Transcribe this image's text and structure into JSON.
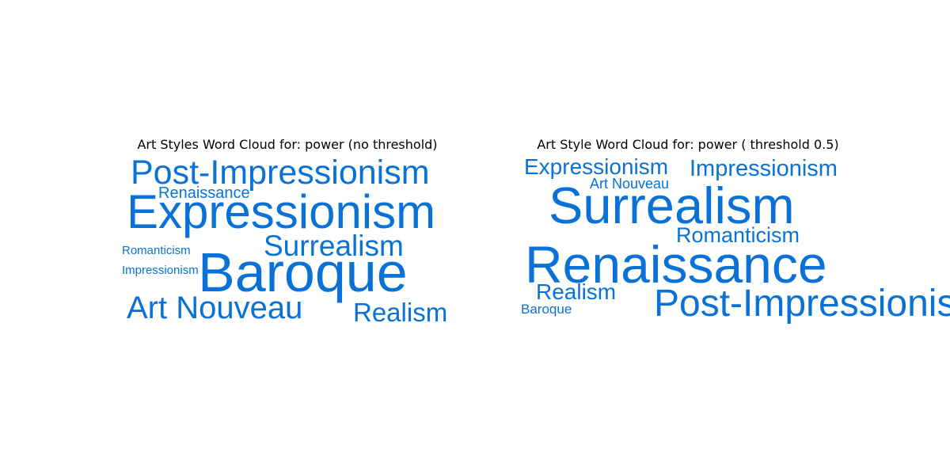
{
  "chart_data": [
    {
      "type": "wordcloud",
      "title": "Art Styles Word Cloud for: power (no threshold)",
      "color": "#0a72d6",
      "words": [
        "Post-Impressionism",
        "Renaissance",
        "Expressionism",
        "Surrealism",
        "Romanticism",
        "Impressionism",
        "Baroque",
        "Art Nouveau",
        "Realism"
      ]
    },
    {
      "type": "wordcloud",
      "title": "Art Style Word Cloud for: power ( threshold 0.5)",
      "color": "#0a72d6",
      "words": [
        "Expressionism",
        "Impressionism",
        "Art Nouveau",
        "Surrealism",
        "Romanticism",
        "Renaissance",
        "Realism",
        "Baroque",
        "Post-Impressionism"
      ]
    }
  ]
}
